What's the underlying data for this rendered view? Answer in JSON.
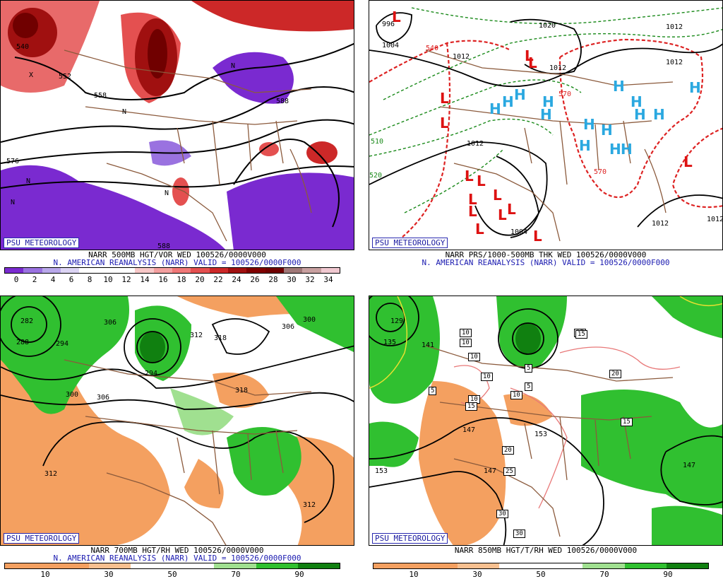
{
  "brand": "PSU METEOROLOGY",
  "panels": {
    "top_left": {
      "caption_line1": "NARR 500MB HGT/VOR WED 100526/0000V000",
      "caption_line2": "N. AMERICAN REANALYSIS (NARR) VALID = 100526/0000F000",
      "colorbar_ticks": [
        "0",
        "2",
        "4",
        "6",
        "8",
        "10",
        "12",
        "14",
        "16",
        "18",
        "20",
        "22",
        "24",
        "26",
        "28",
        "30",
        "32",
        "34"
      ],
      "colorbar_colors": [
        "#7a2ad0",
        "#9a72e0",
        "#b9a8ea",
        "#dcd4f4",
        "#ffffff",
        "#ffffff",
        "#ffffff",
        "#f8c8c8",
        "#f4a0a0",
        "#f07878",
        "#e45050",
        "#cc2828",
        "#a01010",
        "#800000",
        "#700000",
        "#a07878",
        "#c8a0a0",
        "#f0c8d0"
      ],
      "contour_labels": [
        "540",
        "552",
        "558",
        "576",
        "588",
        "588",
        "576",
        "564",
        "540",
        "552"
      ],
      "symbols": [
        "N",
        "N",
        "N",
        "N",
        "N",
        "X"
      ]
    },
    "top_right": {
      "caption_line1": "NARR PRS/1000-500MB THK WED 100526/0000V000",
      "caption_line2": "N. AMERICAN REANALYSIS (NARR) VALID = 100526/0000F000",
      "contour_labels": [
        "996",
        "1004",
        "1020",
        "1012",
        "1012",
        "1012",
        "1012",
        "1012",
        "1004",
        "1012",
        "1012",
        "540",
        "570",
        "570",
        "520",
        "510"
      ],
      "highs": [
        "H",
        "H",
        "H",
        "H",
        "H",
        "H",
        "H",
        "H",
        "H",
        "H",
        "H",
        "H",
        "H",
        "H",
        "H"
      ],
      "lows": [
        "L",
        "L",
        "L",
        "L",
        "L",
        "L",
        "L",
        "L",
        "L",
        "L",
        "L",
        "L",
        "L",
        "L",
        "L"
      ]
    },
    "bottom_left": {
      "caption_line1": "NARR 700MB HGT/RH WED 100526/0000V000",
      "caption_line2": "N. AMERICAN REANALYSIS (NARR) VALID = 100526/0000F000",
      "colorbar_ticks": [
        "10",
        "30",
        "50",
        "70",
        "90"
      ],
      "colorbar_colors": [
        "#f4a060",
        "#f4a060",
        "#f8c090",
        "#ffffff",
        "#ffffff",
        "#a0e090",
        "#30c030",
        "#108010"
      ],
      "contour_labels": [
        "282",
        "288",
        "294",
        "306",
        "312",
        "318",
        "300",
        "306",
        "300",
        "306",
        "312",
        "312",
        "318",
        "294"
      ]
    },
    "bottom_right": {
      "caption_line1": "NARR 850MB HGT/T/RH WED 100526/0000V000",
      "colorbar_ticks": [
        "10",
        "30",
        "50",
        "70",
        "90"
      ],
      "colorbar_colors": [
        "#f4a060",
        "#f4a060",
        "#f8c090",
        "#ffffff",
        "#ffffff",
        "#a0e090",
        "#30c030",
        "#108010"
      ],
      "contour_labels": [
        "129",
        "135",
        "141",
        "147",
        "147",
        "153",
        "153",
        "147"
      ],
      "temp_boxes": [
        "10",
        "10",
        "10",
        "10",
        "10",
        "10",
        "15",
        "15",
        "5",
        "5",
        "15",
        "15",
        "20",
        "20",
        "25",
        "30",
        "30",
        "5"
      ]
    }
  }
}
